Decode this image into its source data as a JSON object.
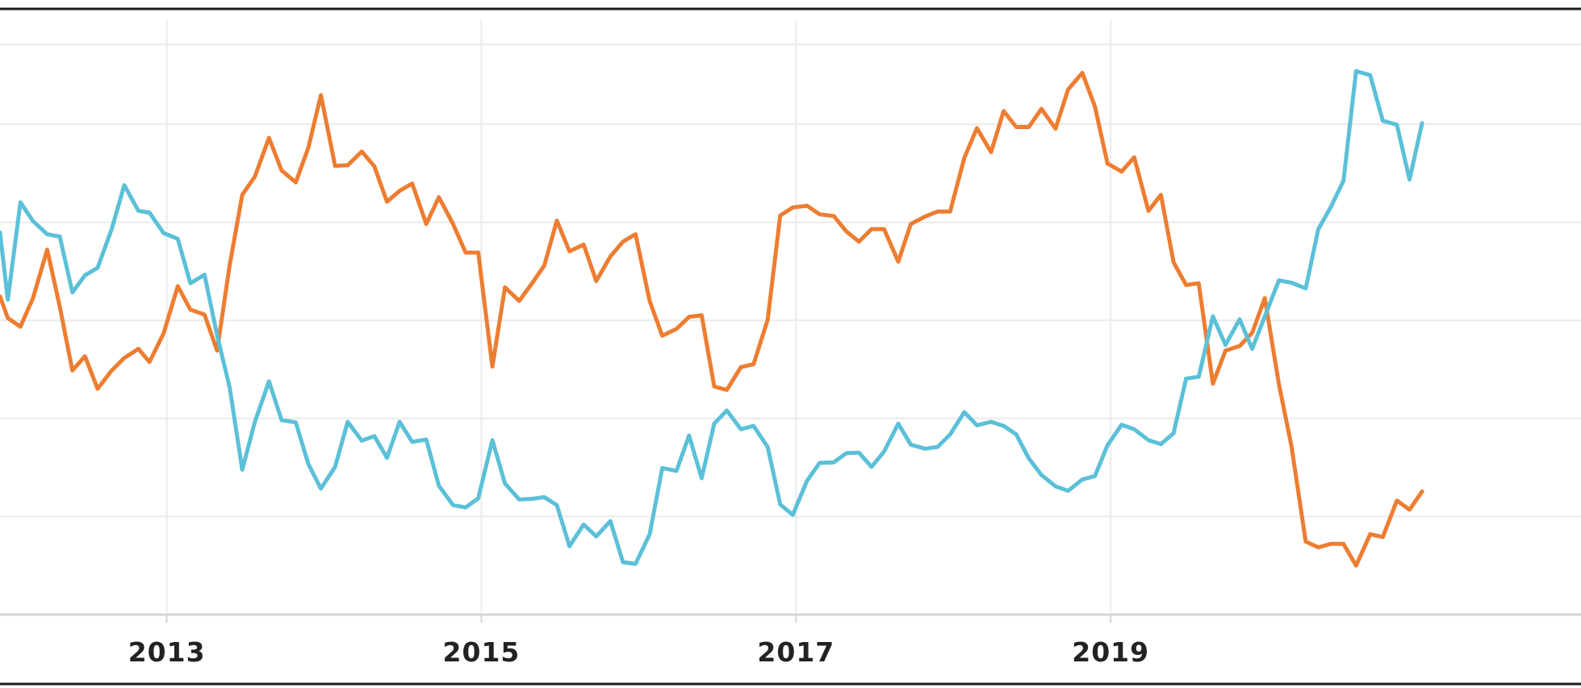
{
  "chart_data": {
    "type": "line",
    "title": "",
    "xlabel": "",
    "ylabel": "",
    "x_tick_labels": [
      "2013",
      "2015",
      "2017",
      "2019"
    ],
    "x_tick_years": [
      2013,
      2015,
      2017,
      2019
    ],
    "xlim": [
      2011.94,
      2021.99
    ],
    "ylim": [
      0,
      100
    ],
    "y_gridlines": [
      0,
      17.2,
      34.4,
      51.6,
      68.8,
      86.0,
      100
    ],
    "grid": true,
    "legend": "none",
    "series": [
      {
        "color": "#ed7d31",
        "points": [
          [
            2011.94,
            55.8
          ],
          [
            2011.99,
            52.0
          ],
          [
            2012.07,
            50.5
          ],
          [
            2012.15,
            55.5
          ],
          [
            2012.24,
            64.0
          ],
          [
            2012.32,
            54.0
          ],
          [
            2012.4,
            42.8
          ],
          [
            2012.48,
            45.3
          ],
          [
            2012.56,
            39.6
          ],
          [
            2012.65,
            42.8
          ],
          [
            2012.73,
            45.0
          ],
          [
            2012.82,
            46.6
          ],
          [
            2012.89,
            44.3
          ],
          [
            2012.98,
            49.3
          ],
          [
            2013.07,
            57.6
          ],
          [
            2013.15,
            53.5
          ],
          [
            2013.24,
            52.6
          ],
          [
            2013.32,
            46.3
          ],
          [
            2013.4,
            61.3
          ],
          [
            2013.48,
            73.6
          ],
          [
            2013.56,
            76.8
          ],
          [
            2013.65,
            83.6
          ],
          [
            2013.73,
            77.9
          ],
          [
            2013.82,
            75.8
          ],
          [
            2013.9,
            81.9
          ],
          [
            2013.98,
            91.1
          ],
          [
            2014.07,
            78.7
          ],
          [
            2014.15,
            78.8
          ],
          [
            2014.24,
            81.2
          ],
          [
            2014.32,
            78.6
          ],
          [
            2014.4,
            72.4
          ],
          [
            2014.48,
            74.3
          ],
          [
            2014.56,
            75.6
          ],
          [
            2014.65,
            68.5
          ],
          [
            2014.73,
            73.2
          ],
          [
            2014.82,
            68.5
          ],
          [
            2014.9,
            63.5
          ],
          [
            2014.98,
            63.5
          ],
          [
            2015.07,
            43.5
          ],
          [
            2015.15,
            57.4
          ],
          [
            2015.24,
            55.0
          ],
          [
            2015.32,
            58.0
          ],
          [
            2015.4,
            61.2
          ],
          [
            2015.48,
            69.1
          ],
          [
            2015.56,
            63.7
          ],
          [
            2015.65,
            64.9
          ],
          [
            2015.73,
            58.5
          ],
          [
            2015.82,
            62.8
          ],
          [
            2015.9,
            65.4
          ],
          [
            2015.98,
            66.7
          ],
          [
            2016.07,
            55.0
          ],
          [
            2016.15,
            48.9
          ],
          [
            2016.24,
            50.1
          ],
          [
            2016.32,
            52.2
          ],
          [
            2016.4,
            52.5
          ],
          [
            2016.48,
            40.0
          ],
          [
            2016.56,
            39.4
          ],
          [
            2016.65,
            43.4
          ],
          [
            2016.73,
            43.9
          ],
          [
            2016.82,
            51.7
          ],
          [
            2016.9,
            70.0
          ],
          [
            2016.98,
            71.4
          ],
          [
            2017.07,
            71.7
          ],
          [
            2017.15,
            70.2
          ],
          [
            2017.24,
            69.9
          ],
          [
            2017.32,
            67.2
          ],
          [
            2017.4,
            65.4
          ],
          [
            2017.48,
            67.6
          ],
          [
            2017.56,
            67.6
          ],
          [
            2017.65,
            61.9
          ],
          [
            2017.73,
            68.5
          ],
          [
            2017.82,
            69.8
          ],
          [
            2017.9,
            70.7
          ],
          [
            2017.98,
            70.7
          ],
          [
            2018.07,
            80.1
          ],
          [
            2018.15,
            85.3
          ],
          [
            2018.24,
            81.1
          ],
          [
            2018.32,
            88.3
          ],
          [
            2018.4,
            85.5
          ],
          [
            2018.48,
            85.5
          ],
          [
            2018.56,
            88.7
          ],
          [
            2018.65,
            85.2
          ],
          [
            2018.73,
            92.1
          ],
          [
            2018.82,
            95.0
          ],
          [
            2018.9,
            89.1
          ],
          [
            2018.98,
            79.1
          ],
          [
            2019.07,
            77.7
          ],
          [
            2019.15,
            80.2
          ],
          [
            2019.24,
            70.8
          ],
          [
            2019.32,
            73.6
          ],
          [
            2019.4,
            61.8
          ],
          [
            2019.48,
            57.8
          ],
          [
            2019.56,
            58.1
          ],
          [
            2019.65,
            40.5
          ],
          [
            2019.73,
            46.3
          ],
          [
            2019.82,
            47.1
          ],
          [
            2019.9,
            49.4
          ],
          [
            2019.98,
            55.5
          ],
          [
            2020.07,
            40.4
          ],
          [
            2020.15,
            29.5
          ],
          [
            2020.24,
            12.8
          ],
          [
            2020.32,
            11.8
          ],
          [
            2020.4,
            12.4
          ],
          [
            2020.48,
            12.4
          ],
          [
            2020.56,
            8.6
          ],
          [
            2020.65,
            14.1
          ],
          [
            2020.73,
            13.6
          ],
          [
            2020.82,
            20.0
          ],
          [
            2020.9,
            18.4
          ],
          [
            2020.98,
            21.6
          ]
        ]
      },
      {
        "color": "#5bc0d8",
        "points": [
          [
            2011.94,
            67.0
          ],
          [
            2011.99,
            55.2
          ],
          [
            2012.07,
            72.3
          ],
          [
            2012.15,
            69.0
          ],
          [
            2012.24,
            66.7
          ],
          [
            2012.32,
            66.3
          ],
          [
            2012.4,
            56.5
          ],
          [
            2012.48,
            59.5
          ],
          [
            2012.56,
            60.8
          ],
          [
            2012.65,
            67.6
          ],
          [
            2012.73,
            75.3
          ],
          [
            2012.82,
            70.8
          ],
          [
            2012.89,
            70.5
          ],
          [
            2012.98,
            66.9
          ],
          [
            2013.07,
            65.9
          ],
          [
            2013.15,
            58.1
          ],
          [
            2013.24,
            59.6
          ],
          [
            2013.32,
            49.0
          ],
          [
            2013.4,
            39.8
          ],
          [
            2013.48,
            25.4
          ],
          [
            2013.56,
            33.8
          ],
          [
            2013.65,
            40.9
          ],
          [
            2013.73,
            34.1
          ],
          [
            2013.82,
            33.7
          ],
          [
            2013.9,
            26.4
          ],
          [
            2013.98,
            22.1
          ],
          [
            2014.07,
            25.9
          ],
          [
            2014.15,
            33.8
          ],
          [
            2014.24,
            30.5
          ],
          [
            2014.32,
            31.3
          ],
          [
            2014.4,
            27.5
          ],
          [
            2014.48,
            33.8
          ],
          [
            2014.56,
            30.3
          ],
          [
            2014.65,
            30.7
          ],
          [
            2014.73,
            22.6
          ],
          [
            2014.82,
            19.2
          ],
          [
            2014.9,
            18.8
          ],
          [
            2014.98,
            20.4
          ],
          [
            2015.07,
            30.6
          ],
          [
            2015.15,
            23.0
          ],
          [
            2015.24,
            20.2
          ],
          [
            2015.32,
            20.3
          ],
          [
            2015.4,
            20.6
          ],
          [
            2015.48,
            19.2
          ],
          [
            2015.56,
            12.0
          ],
          [
            2015.65,
            15.8
          ],
          [
            2015.73,
            13.7
          ],
          [
            2015.82,
            16.4
          ],
          [
            2015.9,
            9.2
          ],
          [
            2015.98,
            8.9
          ],
          [
            2016.07,
            14.1
          ],
          [
            2016.15,
            25.7
          ],
          [
            2016.24,
            25.2
          ],
          [
            2016.32,
            31.4
          ],
          [
            2016.4,
            23.9
          ],
          [
            2016.48,
            33.5
          ],
          [
            2016.56,
            35.8
          ],
          [
            2016.65,
            32.5
          ],
          [
            2016.73,
            33.1
          ],
          [
            2016.82,
            29.4
          ],
          [
            2016.9,
            19.3
          ],
          [
            2016.98,
            17.5
          ],
          [
            2017.07,
            23.5
          ],
          [
            2017.15,
            26.6
          ],
          [
            2017.24,
            26.7
          ],
          [
            2017.32,
            28.3
          ],
          [
            2017.4,
            28.4
          ],
          [
            2017.48,
            25.9
          ],
          [
            2017.56,
            28.6
          ],
          [
            2017.65,
            33.5
          ],
          [
            2017.73,
            29.8
          ],
          [
            2017.82,
            29.1
          ],
          [
            2017.9,
            29.4
          ],
          [
            2017.98,
            31.6
          ],
          [
            2018.07,
            35.5
          ],
          [
            2018.15,
            33.2
          ],
          [
            2018.24,
            33.8
          ],
          [
            2018.32,
            33.1
          ],
          [
            2018.4,
            31.6
          ],
          [
            2018.48,
            27.4
          ],
          [
            2018.56,
            24.5
          ],
          [
            2018.65,
            22.5
          ],
          [
            2018.73,
            21.7
          ],
          [
            2018.82,
            23.7
          ],
          [
            2018.9,
            24.3
          ],
          [
            2018.98,
            29.7
          ],
          [
            2019.07,
            33.3
          ],
          [
            2019.15,
            32.5
          ],
          [
            2019.24,
            30.6
          ],
          [
            2019.32,
            29.9
          ],
          [
            2019.4,
            31.8
          ],
          [
            2019.48,
            41.4
          ],
          [
            2019.56,
            41.7
          ],
          [
            2019.65,
            52.3
          ],
          [
            2019.73,
            47.3
          ],
          [
            2019.82,
            51.8
          ],
          [
            2019.9,
            46.6
          ],
          [
            2019.98,
            52.3
          ],
          [
            2020.07,
            58.6
          ],
          [
            2020.15,
            58.2
          ],
          [
            2020.24,
            57.2
          ],
          [
            2020.32,
            67.6
          ],
          [
            2020.4,
            71.5
          ],
          [
            2020.48,
            76.1
          ],
          [
            2020.56,
            95.3
          ],
          [
            2020.65,
            94.6
          ],
          [
            2020.73,
            86.6
          ],
          [
            2020.82,
            85.9
          ],
          [
            2020.9,
            76.3
          ],
          [
            2020.98,
            86.2
          ]
        ]
      }
    ]
  }
}
